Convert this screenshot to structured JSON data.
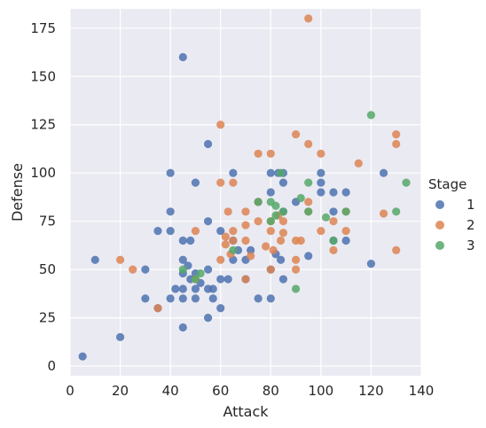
{
  "colors": {
    "plot_bg": "#eaeaf2",
    "grid": "#ffffff",
    "text": "#262626"
  },
  "chart_data": {
    "type": "scatter",
    "title": "",
    "xlabel": "Attack",
    "ylabel": "Defense",
    "xlim": [
      0,
      140
    ],
    "ylim": [
      -5,
      185
    ],
    "x_ticks": [
      0,
      20,
      40,
      60,
      80,
      100,
      120,
      140
    ],
    "y_ticks": [
      0,
      25,
      50,
      75,
      100,
      125,
      150,
      175
    ],
    "grid": true,
    "legend": {
      "title": "Stage",
      "placement": "right"
    },
    "series": [
      {
        "name": "1",
        "color": "#4c72b0",
        "points": [
          [
            5,
            5
          ],
          [
            10,
            55
          ],
          [
            20,
            15
          ],
          [
            30,
            35
          ],
          [
            30,
            50
          ],
          [
            35,
            30
          ],
          [
            35,
            70
          ],
          [
            40,
            35
          ],
          [
            40,
            70
          ],
          [
            40,
            80
          ],
          [
            40,
            100
          ],
          [
            42,
            40
          ],
          [
            45,
            20
          ],
          [
            45,
            35
          ],
          [
            45,
            40
          ],
          [
            45,
            48
          ],
          [
            45,
            55
          ],
          [
            45,
            65
          ],
          [
            45,
            160
          ],
          [
            47,
            52
          ],
          [
            48,
            45
          ],
          [
            48,
            65
          ],
          [
            50,
            35
          ],
          [
            50,
            40
          ],
          [
            50,
            48
          ],
          [
            50,
            95
          ],
          [
            52,
            43
          ],
          [
            55,
            25
          ],
          [
            55,
            40
          ],
          [
            55,
            50
          ],
          [
            55,
            75
          ],
          [
            55,
            115
          ],
          [
            57,
            35
          ],
          [
            57,
            40
          ],
          [
            60,
            30
          ],
          [
            60,
            45
          ],
          [
            60,
            70
          ],
          [
            63,
            45
          ],
          [
            65,
            65
          ],
          [
            65,
            100
          ],
          [
            65,
            55
          ],
          [
            67,
            60
          ],
          [
            70,
            45
          ],
          [
            70,
            55
          ],
          [
            72,
            60
          ],
          [
            75,
            35
          ],
          [
            75,
            85
          ],
          [
            80,
            35
          ],
          [
            80,
            50
          ],
          [
            80,
            90
          ],
          [
            80,
            100
          ],
          [
            82,
            58
          ],
          [
            83,
            100
          ],
          [
            84,
            55
          ],
          [
            85,
            45
          ],
          [
            85,
            80
          ],
          [
            85,
            95
          ],
          [
            85,
            100
          ],
          [
            90,
            85
          ],
          [
            95,
            57
          ],
          [
            100,
            95
          ],
          [
            100,
            90
          ],
          [
            100,
            100
          ],
          [
            105,
            90
          ],
          [
            105,
            65
          ],
          [
            105,
            80
          ],
          [
            110,
            90
          ],
          [
            110,
            65
          ],
          [
            120,
            53
          ],
          [
            125,
            100
          ]
        ]
      },
      {
        "name": "2",
        "color": "#dd8452",
        "points": [
          [
            20,
            55
          ],
          [
            25,
            50
          ],
          [
            35,
            30
          ],
          [
            50,
            70
          ],
          [
            50,
            45
          ],
          [
            60,
            95
          ],
          [
            60,
            125
          ],
          [
            60,
            55
          ],
          [
            62,
            67
          ],
          [
            62,
            63
          ],
          [
            63,
            80
          ],
          [
            64,
            58
          ],
          [
            65,
            95
          ],
          [
            65,
            65
          ],
          [
            65,
            70
          ],
          [
            70,
            80
          ],
          [
            70,
            65
          ],
          [
            70,
            73
          ],
          [
            70,
            45
          ],
          [
            72,
            57
          ],
          [
            75,
            75
          ],
          [
            75,
            85
          ],
          [
            75,
            110
          ],
          [
            78,
            62
          ],
          [
            80,
            110
          ],
          [
            80,
            75
          ],
          [
            80,
            70
          ],
          [
            80,
            50
          ],
          [
            81,
            60
          ],
          [
            83,
            78
          ],
          [
            84,
            65
          ],
          [
            85,
            75
          ],
          [
            85,
            69
          ],
          [
            90,
            120
          ],
          [
            90,
            55
          ],
          [
            90,
            65
          ],
          [
            90,
            50
          ],
          [
            92,
            65
          ],
          [
            95,
            180
          ],
          [
            95,
            115
          ],
          [
            95,
            85
          ],
          [
            95,
            80
          ],
          [
            100,
            110
          ],
          [
            100,
            70
          ],
          [
            105,
            75
          ],
          [
            105,
            60
          ],
          [
            110,
            80
          ],
          [
            110,
            70
          ],
          [
            115,
            105
          ],
          [
            125,
            79
          ],
          [
            130,
            120
          ],
          [
            130,
            115
          ],
          [
            130,
            60
          ]
        ]
      },
      {
        "name": "3",
        "color": "#55a868",
        "points": [
          [
            45,
            50
          ],
          [
            50,
            45
          ],
          [
            52,
            48
          ],
          [
            65,
            60
          ],
          [
            75,
            85
          ],
          [
            80,
            85
          ],
          [
            80,
            75
          ],
          [
            82,
            78
          ],
          [
            82,
            83
          ],
          [
            84,
            100
          ],
          [
            85,
            80
          ],
          [
            90,
            40
          ],
          [
            92,
            87
          ],
          [
            95,
            95
          ],
          [
            95,
            80
          ],
          [
            102,
            77
          ],
          [
            105,
            65
          ],
          [
            110,
            80
          ],
          [
            120,
            130
          ],
          [
            130,
            80
          ],
          [
            134,
            95
          ]
        ]
      }
    ]
  }
}
